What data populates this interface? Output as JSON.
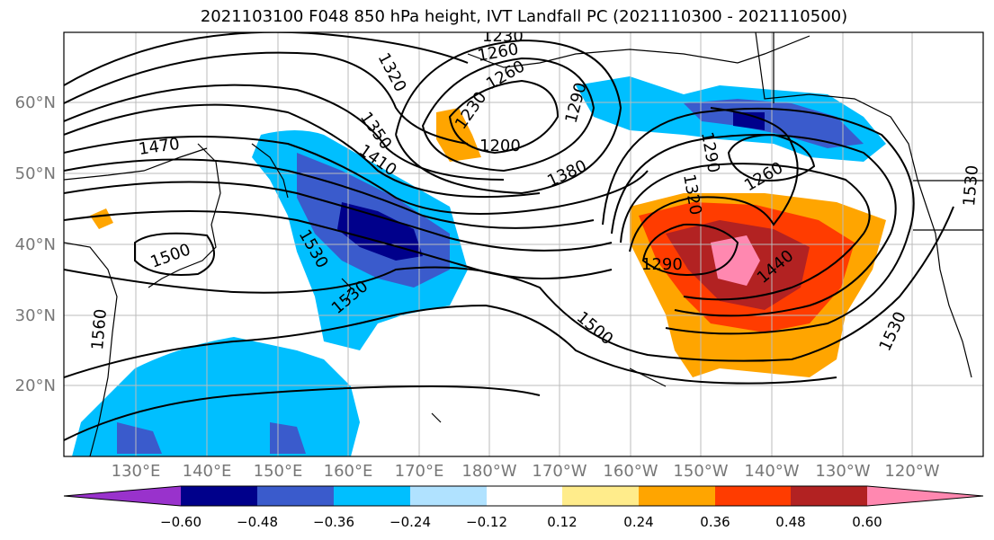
{
  "title": "2021103100 F048 850 hPa height, IVT Landfall PC (2021110300 - 2021110500)",
  "lat_labels": [
    "60°N",
    "50°N",
    "40°N",
    "30°N",
    "20°N"
  ],
  "lon_labels": [
    "130°E",
    "140°E",
    "150°E",
    "160°E",
    "170°E",
    "180°W",
    "170°W",
    "160°W",
    "150°W",
    "140°W",
    "130°W",
    "120°W"
  ],
  "contour_labels": [
    "1230",
    "1260",
    "1260",
    "1320",
    "1350",
    "1230",
    "1200",
    "1290",
    "1290",
    "1320",
    "1470",
    "1410",
    "1380",
    "1260",
    "1500",
    "1530",
    "1530",
    "1290",
    "1440",
    "1560",
    "1500",
    "1530",
    "1530"
  ],
  "colorbar": {
    "ticks": [
      "−0.60",
      "−0.48",
      "−0.36",
      "−0.24",
      "−0.12",
      "0.12",
      "0.24",
      "0.36",
      "0.48",
      "0.60"
    ],
    "colors": [
      "#9932cc",
      "#00008b",
      "#3a5bcc",
      "#00bfff",
      "#b0e2ff",
      "#ffffff",
      "#ffec8b",
      "#ffa500",
      "#ff3c00",
      "#b22222",
      "#ff88b0"
    ]
  }
}
